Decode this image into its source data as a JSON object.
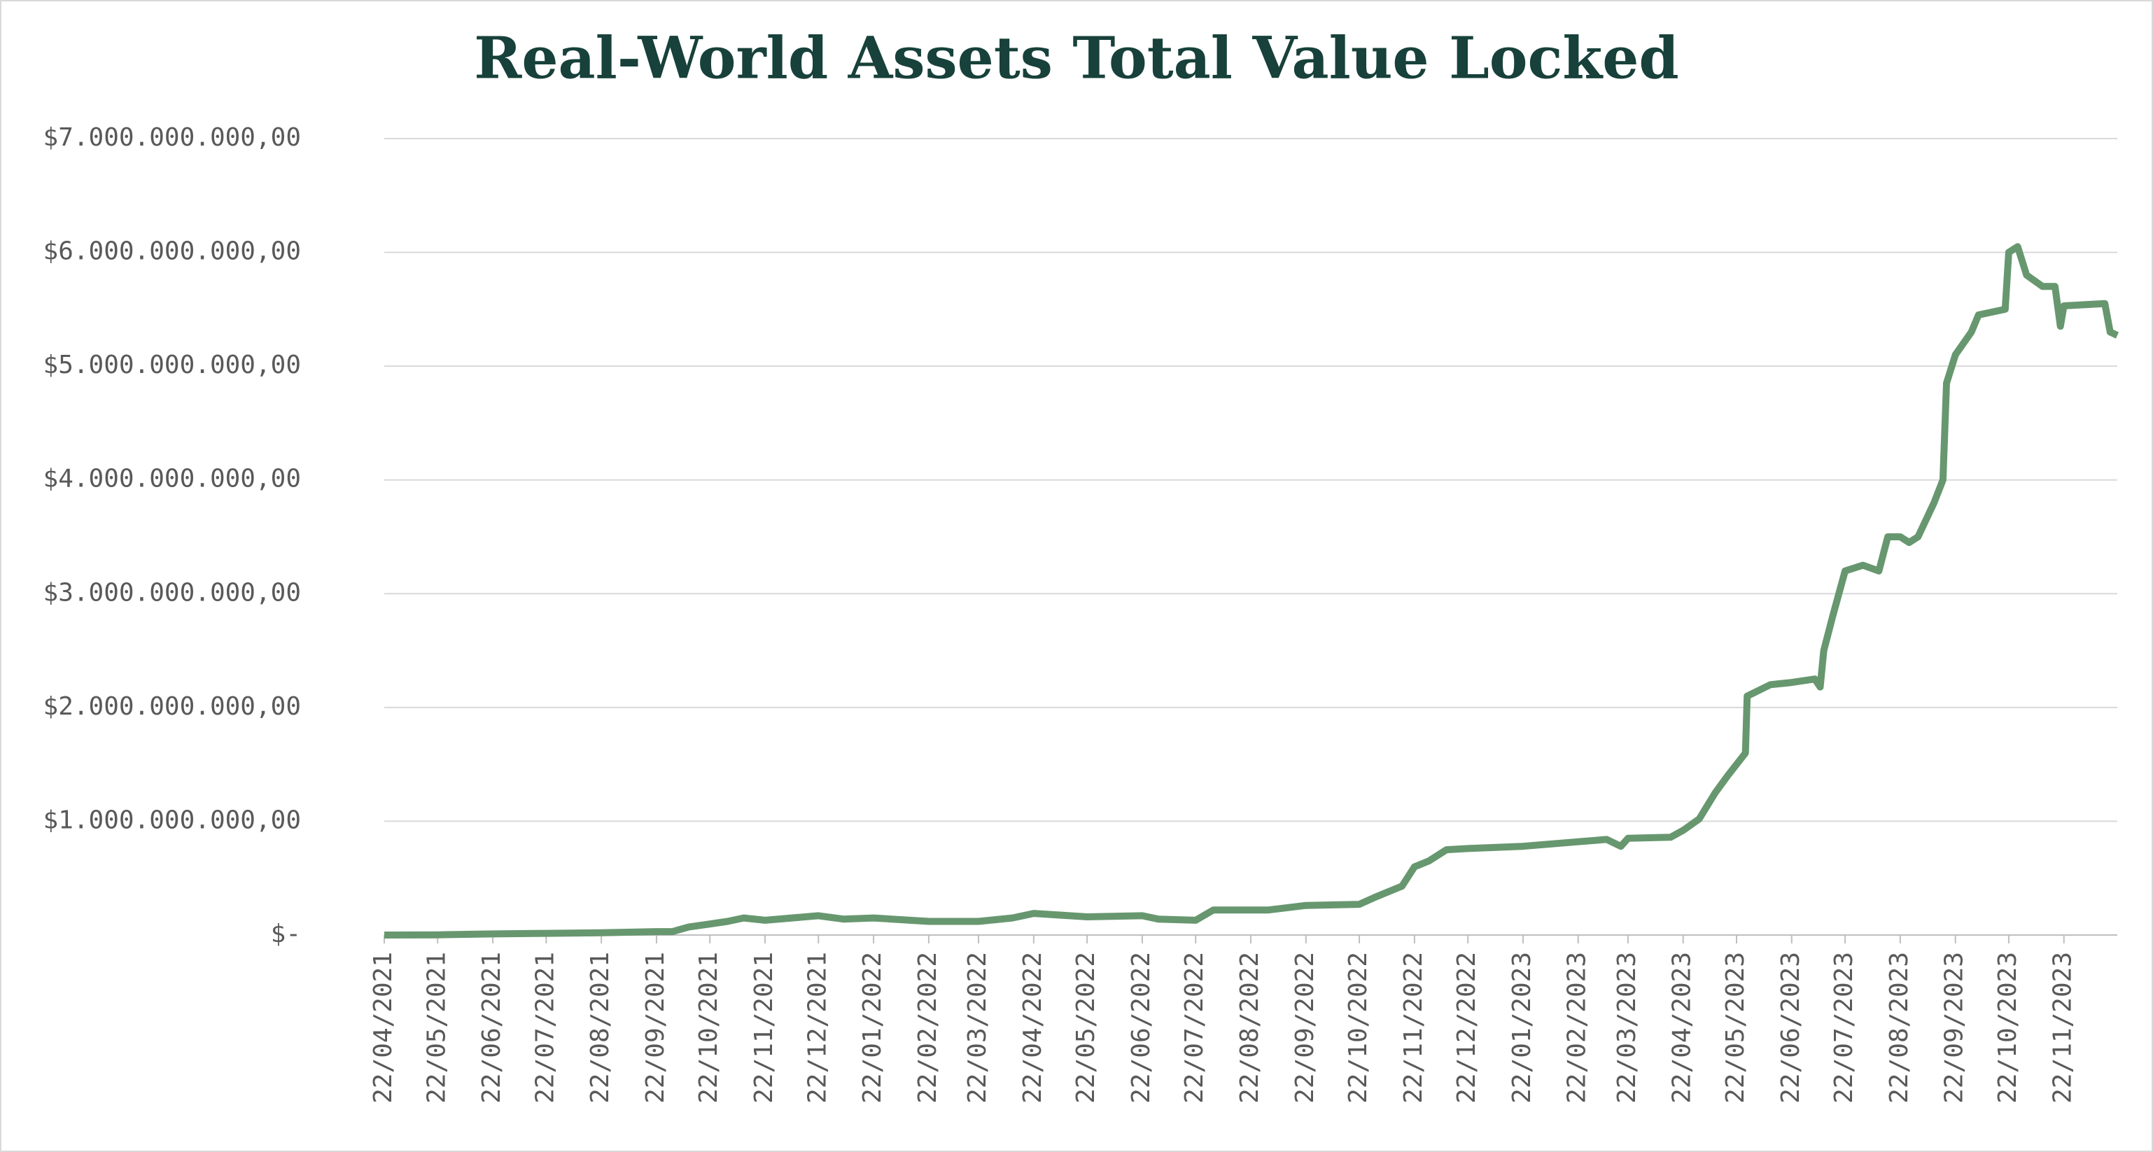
{
  "chart_data": {
    "type": "line",
    "title": "Real-World Assets Total Value Locked",
    "x": [
      "22/04/2021",
      "22/05/2021",
      "22/06/2021",
      "22/07/2021",
      "22/08/2021",
      "22/09/2021",
      "01/10/2021",
      "10/10/2021",
      "01/11/2021",
      "10/11/2021",
      "22/11/2021",
      "22/12/2021",
      "05/01/2022",
      "22/01/2022",
      "22/02/2022",
      "22/03/2022",
      "10/04/2022",
      "22/04/2022",
      "22/05/2022",
      "22/06/2022",
      "01/07/2022",
      "22/07/2022",
      "01/08/2022",
      "01/09/2022",
      "22/09/2022",
      "22/10/2022",
      "01/11/2022",
      "15/11/2022",
      "22/11/2022",
      "30/11/2022",
      "10/12/2022",
      "22/12/2022",
      "22/01/2023",
      "22/02/2023",
      "10/03/2023",
      "18/03/2023",
      "22/03/2023",
      "15/04/2023",
      "22/04/2023",
      "01/05/2023",
      "10/05/2023",
      "17/05/2023",
      "27/05/2023",
      "28/05/2023",
      "10/06/2023",
      "22/06/2023",
      "05/07/2023",
      "08/07/2023",
      "10/07/2023",
      "15/07/2023",
      "22/07/2023",
      "01/08/2023",
      "10/08/2023",
      "15/08/2023",
      "22/08/2023",
      "27/08/2023",
      "01/09/2023",
      "10/09/2023",
      "15/09/2023",
      "17/09/2023",
      "22/09/2023",
      "01/10/2023",
      "05/10/2023",
      "20/10/2023",
      "22/10/2023",
      "27/10/2023",
      "01/11/2023",
      "10/11/2023",
      "17/11/2023",
      "20/11/2023",
      "22/11/2023",
      "15/12/2023",
      "18/12/2023",
      "22/12/2023"
    ],
    "series": [
      {
        "name": "Total Value Locked",
        "color": "#67976f",
        "values": [
          0,
          2000000,
          10000000,
          15000000,
          20000000,
          30000000,
          30000000,
          70000000,
          120000000,
          150000000,
          130000000,
          170000000,
          140000000,
          150000000,
          120000000,
          120000000,
          150000000,
          190000000,
          160000000,
          170000000,
          140000000,
          130000000,
          220000000,
          220000000,
          260000000,
          270000000,
          340000000,
          430000000,
          600000000,
          650000000,
          750000000,
          760000000,
          780000000,
          820000000,
          840000000,
          780000000,
          850000000,
          860000000,
          920000000,
          1020000000,
          1250000000,
          1400000000,
          1600000000,
          2100000000,
          2200000000,
          2220000000,
          2250000000,
          2180000000,
          2500000000,
          2800000000,
          3200000000,
          3250000000,
          3200000000,
          3500000000,
          3500000000,
          3450000000,
          3500000000,
          3800000000,
          4000000000,
          4850000000,
          5100000000,
          5300000000,
          5450000000,
          5500000000,
          6000000000,
          6050000000,
          5800000000,
          5700000000,
          5700000000,
          5350000000,
          5530000000,
          5550000000,
          5300000000,
          5270000000
        ]
      }
    ],
    "xlim": [
      "22/04/2021",
      "22/12/2023"
    ],
    "xticks": [
      "22/04/2021",
      "22/05/2021",
      "22/06/2021",
      "22/07/2021",
      "22/08/2021",
      "22/09/2021",
      "22/10/2021",
      "22/11/2021",
      "22/12/2021",
      "22/01/2022",
      "22/02/2022",
      "22/03/2022",
      "22/04/2022",
      "22/05/2022",
      "22/06/2022",
      "22/07/2022",
      "22/08/2022",
      "22/09/2022",
      "22/10/2022",
      "22/11/2022",
      "22/12/2022",
      "22/01/2023",
      "22/02/2023",
      "22/03/2023",
      "22/04/2023",
      "22/05/2023",
      "22/06/2023",
      "22/07/2023",
      "22/08/2023",
      "22/09/2023",
      "22/10/2023",
      "22/11/2023"
    ],
    "ylim": [
      0,
      7000000000
    ],
    "yticks": [
      {
        "value": 0,
        "label": "$-"
      },
      {
        "value": 1000000000,
        "label": "$1.000.000.000,00"
      },
      {
        "value": 2000000000,
        "label": "$2.000.000.000,00"
      },
      {
        "value": 3000000000,
        "label": "$3.000.000.000,00"
      },
      {
        "value": 4000000000,
        "label": "$4.000.000.000,00"
      },
      {
        "value": 5000000000,
        "label": "$5.000.000.000,00"
      },
      {
        "value": 6000000000,
        "label": "$6.000.000.000,00"
      },
      {
        "value": 7000000000,
        "label": "$7.000.000.000,00"
      }
    ],
    "grid": true
  }
}
